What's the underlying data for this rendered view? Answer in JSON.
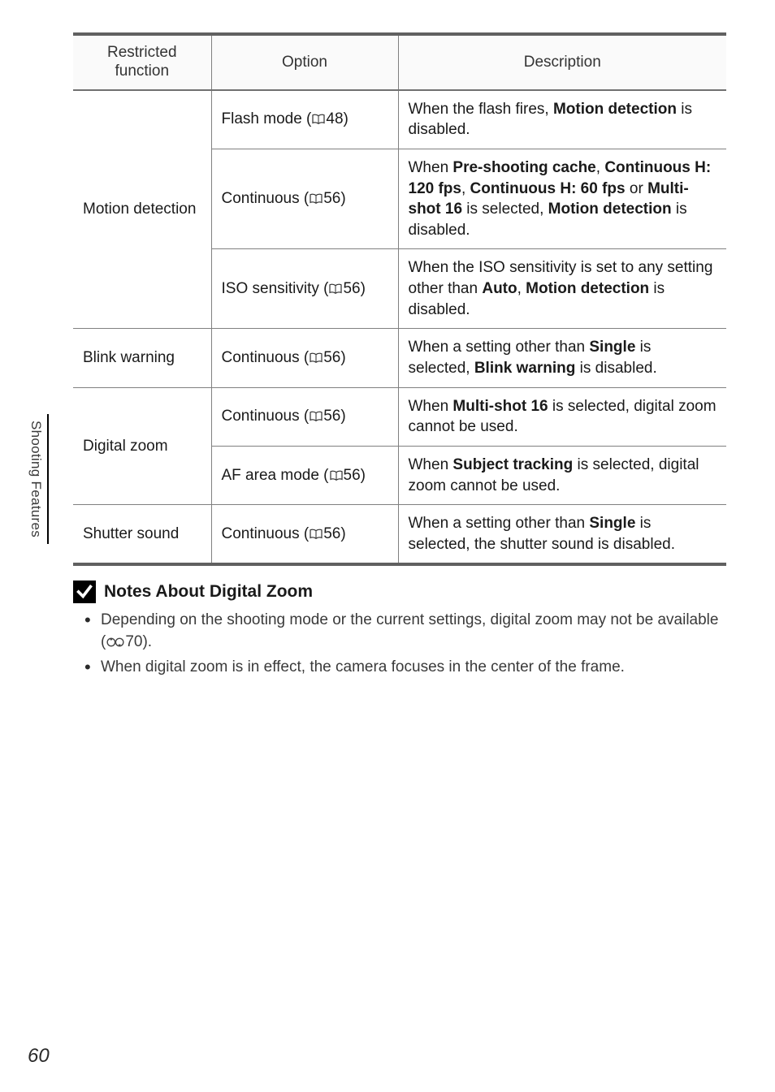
{
  "sideTab": "Shooting Features",
  "pageNumber": "60",
  "table": {
    "headers": {
      "func": "Restricted\nfunction",
      "option": "Option",
      "desc": "Description"
    },
    "rows": [
      {
        "func": "Motion detection",
        "funcRowspan": 3,
        "option": {
          "label": "Flash mode (",
          "ref": "48",
          "suffix": ")"
        },
        "desc": "When the flash fires, <b>Motion detection</b> is disabled."
      },
      {
        "option": {
          "label": "Continuous (",
          "ref": "56",
          "suffix": ")"
        },
        "desc": "When <b>Pre-shooting cache</b>, <b>Continuous H: 120 fps</b>, <b>Continuous H: 60 fps</b> or <b>Multi-shot 16</b> is selected, <b>Motion detection</b> is disabled."
      },
      {
        "option": {
          "label": "ISO sensitivity (",
          "ref": "56",
          "suffix": ")"
        },
        "desc": "When the ISO sensitivity is set to any setting other than <b>Auto</b>, <b>Motion detection</b> is disabled."
      },
      {
        "func": "Blink warning",
        "funcRowspan": 1,
        "option": {
          "label": "Continuous (",
          "ref": "56",
          "suffix": ")"
        },
        "desc": "When a setting other than <b>Single</b> is selected, <b>Blink warning</b> is disabled."
      },
      {
        "func": "Digital zoom",
        "funcRowspan": 2,
        "option": {
          "label": "Continuous (",
          "ref": "56",
          "suffix": ")"
        },
        "desc": "When <b>Multi-shot 16</b> is selected, digital zoom cannot be used."
      },
      {
        "option": {
          "label": "AF area mode (",
          "ref": "56",
          "suffix": ")"
        },
        "desc": "When <b>Subject tracking</b> is selected, digital zoom cannot be used."
      },
      {
        "func": "Shutter sound",
        "funcRowspan": 1,
        "option": {
          "label": "Continuous (",
          "ref": "56",
          "suffix": ")"
        },
        "desc": "When a setting other than <b>Single</b> is selected, the shutter sound is disabled."
      }
    ]
  },
  "notes": {
    "title": "Notes About Digital Zoom",
    "items": [
      {
        "pre": "Depending on the shooting mode or the current settings, digital zoom may not be available (",
        "ref": "70",
        "suffix": ")."
      },
      {
        "pre": "When digital zoom is in effect, the camera focuses in the center of the frame."
      }
    ]
  }
}
